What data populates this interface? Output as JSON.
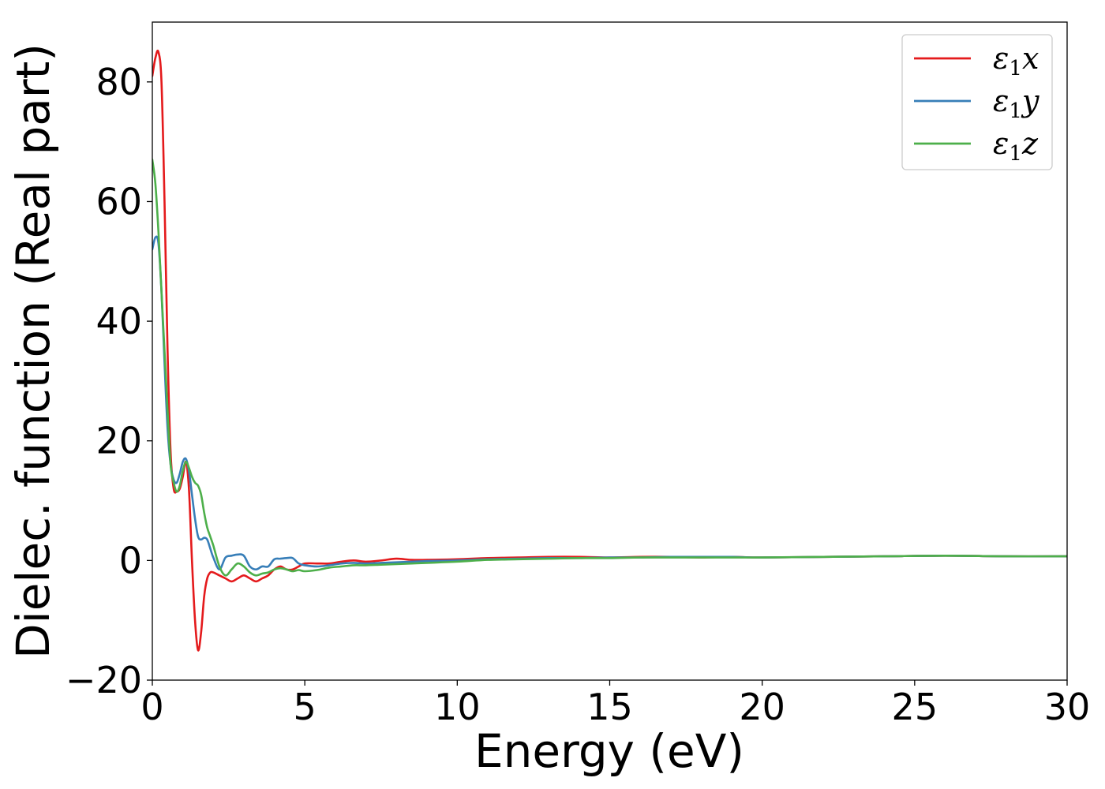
{
  "chart_data": {
    "type": "line",
    "xlabel": "Energy (eV)",
    "ylabel": "Dielec. function (Real part)",
    "xlim": [
      0,
      30
    ],
    "ylim": [
      -20,
      90
    ],
    "xticks": [
      0,
      5,
      10,
      15,
      20,
      25,
      30
    ],
    "xtick_labels": [
      "0",
      "5",
      "10",
      "15",
      "20",
      "25",
      "30"
    ],
    "yticks": [
      -20,
      0,
      20,
      40,
      60,
      80
    ],
    "ytick_labels": [
      "−20",
      "0",
      "20",
      "40",
      "60",
      "80"
    ],
    "grid": false,
    "legend_position": "top-right",
    "series": [
      {
        "name": "ε1x",
        "legend_base": "ε",
        "legend_sub": "1",
        "legend_suffix": "x",
        "color": "#e41a1c",
        "x": [
          0,
          0.1,
          0.2,
          0.3,
          0.4,
          0.5,
          0.6,
          0.7,
          0.8,
          0.9,
          1.0,
          1.1,
          1.2,
          1.3,
          1.4,
          1.5,
          1.6,
          1.7,
          1.8,
          1.9,
          2.0,
          2.2,
          2.4,
          2.6,
          2.8,
          3.0,
          3.2,
          3.4,
          3.6,
          3.8,
          4.0,
          4.2,
          4.4,
          4.6,
          4.8,
          5.0,
          5.4,
          5.8,
          6.2,
          6.6,
          7.0,
          7.5,
          8.0,
          8.5,
          9.0,
          10.0,
          11.0,
          12.0,
          13.0,
          14.0,
          15.0,
          16.0,
          17.0,
          18.0,
          19.0,
          20.0,
          22.0,
          24.0,
          26.0,
          28.0,
          30.0
        ],
        "y": [
          81,
          84,
          85,
          80,
          60,
          35,
          18,
          12,
          11.5,
          12,
          14,
          16.5,
          12,
          0,
          -10,
          -15,
          -12,
          -6,
          -3,
          -2,
          -2,
          -2.5,
          -3,
          -3.5,
          -3,
          -2.5,
          -3,
          -3.5,
          -3,
          -2.5,
          -1.5,
          -1,
          -1.5,
          -1.5,
          -1,
          -0.5,
          -0.5,
          -0.5,
          -0.2,
          0,
          -0.2,
          0,
          0.3,
          0.1,
          0.1,
          0.2,
          0.4,
          0.5,
          0.6,
          0.6,
          0.5,
          0.6,
          0.6,
          0.5,
          0.6,
          0.5,
          0.6,
          0.7,
          0.8,
          0.7,
          0.7
        ]
      },
      {
        "name": "ε1y",
        "legend_base": "ε",
        "legend_sub": "1",
        "legend_suffix": "y",
        "color": "#377eb8",
        "x": [
          0,
          0.1,
          0.2,
          0.3,
          0.4,
          0.5,
          0.6,
          0.7,
          0.8,
          0.9,
          1.0,
          1.1,
          1.2,
          1.3,
          1.4,
          1.5,
          1.6,
          1.7,
          1.8,
          1.9,
          2.0,
          2.2,
          2.4,
          2.6,
          2.8,
          3.0,
          3.2,
          3.4,
          3.6,
          3.8,
          4.0,
          4.2,
          4.4,
          4.6,
          4.8,
          5.0,
          5.4,
          5.8,
          6.2,
          6.6,
          7.0,
          7.5,
          8.0,
          8.5,
          9.0,
          10.0,
          11.0,
          12.0,
          13.0,
          14.0,
          15.0,
          16.0,
          17.0,
          18.0,
          19.0,
          20.0,
          22.0,
          24.0,
          26.0,
          28.0,
          30.0
        ],
        "y": [
          52,
          54,
          53,
          45,
          33,
          22,
          16,
          13.5,
          13,
          14.5,
          16.5,
          17,
          15,
          11,
          7,
          4,
          3.5,
          3.8,
          3.5,
          2,
          0.5,
          -1.5,
          0.5,
          0.8,
          1,
          0.8,
          -1,
          -1.5,
          -1,
          -1,
          0.2,
          0.3,
          0.4,
          0.4,
          -0.5,
          -0.8,
          -1,
          -0.8,
          -0.5,
          -0.4,
          -0.5,
          -0.4,
          -0.3,
          -0.2,
          -0.1,
          0,
          0.2,
          0.3,
          0.4,
          0.4,
          0.5,
          0.5,
          0.6,
          0.6,
          0.6,
          0.5,
          0.6,
          0.7,
          0.8,
          0.7,
          0.7
        ]
      },
      {
        "name": "ε1z",
        "legend_base": "ε",
        "legend_sub": "1",
        "legend_suffix": "z",
        "color": "#4daf4a",
        "x": [
          0,
          0.1,
          0.2,
          0.3,
          0.4,
          0.5,
          0.6,
          0.7,
          0.8,
          0.9,
          1.0,
          1.1,
          1.2,
          1.3,
          1.4,
          1.5,
          1.6,
          1.7,
          1.8,
          1.9,
          2.0,
          2.2,
          2.4,
          2.6,
          2.8,
          3.0,
          3.2,
          3.4,
          3.6,
          3.8,
          4.0,
          4.2,
          4.4,
          4.6,
          4.8,
          5.0,
          5.4,
          5.8,
          6.2,
          6.6,
          7.0,
          7.5,
          8.0,
          8.5,
          9.0,
          10.0,
          11.0,
          12.0,
          13.0,
          14.0,
          15.0,
          16.0,
          17.0,
          18.0,
          19.0,
          20.0,
          22.0,
          24.0,
          26.0,
          28.0,
          30.0
        ],
        "y": [
          67,
          63,
          55,
          45,
          35,
          25,
          16,
          13,
          11.5,
          12.5,
          15,
          16.5,
          15.5,
          14,
          13,
          12.5,
          11,
          8,
          5.5,
          4,
          2.5,
          -1,
          -2.5,
          -1.5,
          -0.5,
          -1,
          -2,
          -2.5,
          -2.2,
          -2,
          -1.5,
          -1.3,
          -1.5,
          -1.8,
          -1.6,
          -1.8,
          -1.6,
          -1.2,
          -1,
          -0.8,
          -0.8,
          -0.7,
          -0.6,
          -0.5,
          -0.4,
          -0.2,
          0.1,
          0.2,
          0.3,
          0.4,
          0.4,
          0.5,
          0.5,
          0.5,
          0.5,
          0.5,
          0.6,
          0.7,
          0.8,
          0.7,
          0.7
        ]
      }
    ]
  }
}
